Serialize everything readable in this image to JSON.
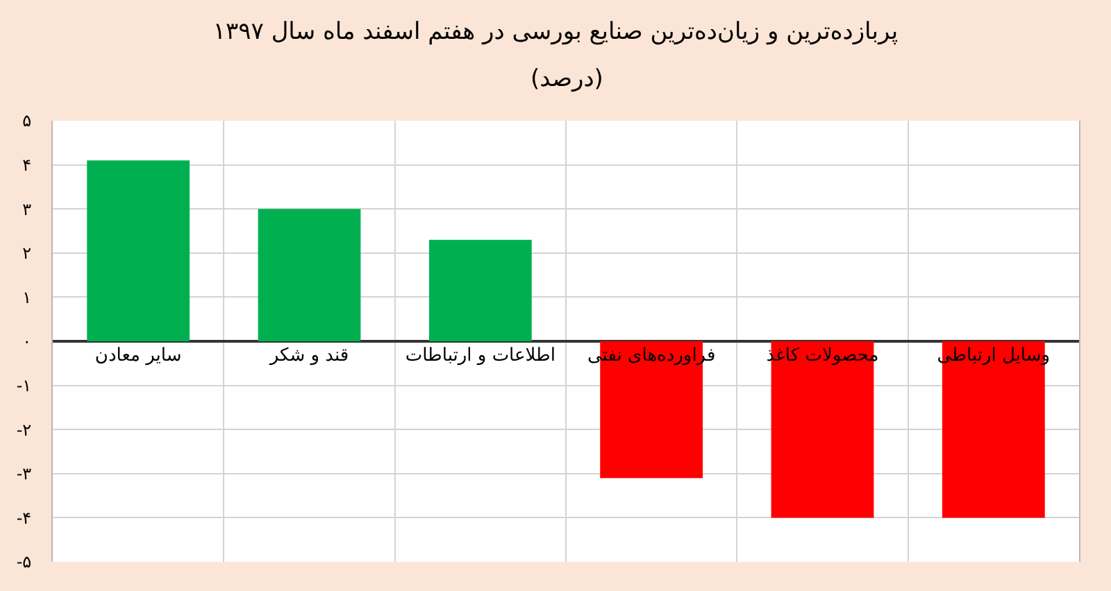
{
  "chart_data": {
    "type": "bar",
    "title": "پربازده‌ترین و زیان‌ده‌ترین صنایع بورسی در هفتم اسفند ماه سال ۱۳۹۷",
    "subtitle": "(درصد)",
    "categories": [
      "سایر معادن",
      "قند و شکر",
      "اطلاعات و ارتباطات",
      "فراورده‌های نفتی",
      "محصولات کاغذ",
      "وسایل ارتباطی"
    ],
    "values": [
      4.1,
      3.0,
      2.3,
      -3.1,
      -4.0,
      -4.0
    ],
    "colors": [
      "#00b050",
      "#00b050",
      "#00b050",
      "#ff0000",
      "#ff0000",
      "#ff0000"
    ],
    "ylim": [
      -5,
      5
    ],
    "yticks": [
      {
        "value": 5,
        "label": "۵"
      },
      {
        "value": 4,
        "label": "۴"
      },
      {
        "value": 3,
        "label": "۳"
      },
      {
        "value": 2,
        "label": "۲"
      },
      {
        "value": 1,
        "label": "۱"
      },
      {
        "value": 0,
        "label": "۰"
      },
      {
        "value": -1,
        "label": "-۱"
      },
      {
        "value": -2,
        "label": "-۲"
      },
      {
        "value": -3,
        "label": "-۳"
      },
      {
        "value": -4,
        "label": "-۴"
      },
      {
        "value": -5,
        "label": "-۵"
      }
    ],
    "grid": true
  }
}
